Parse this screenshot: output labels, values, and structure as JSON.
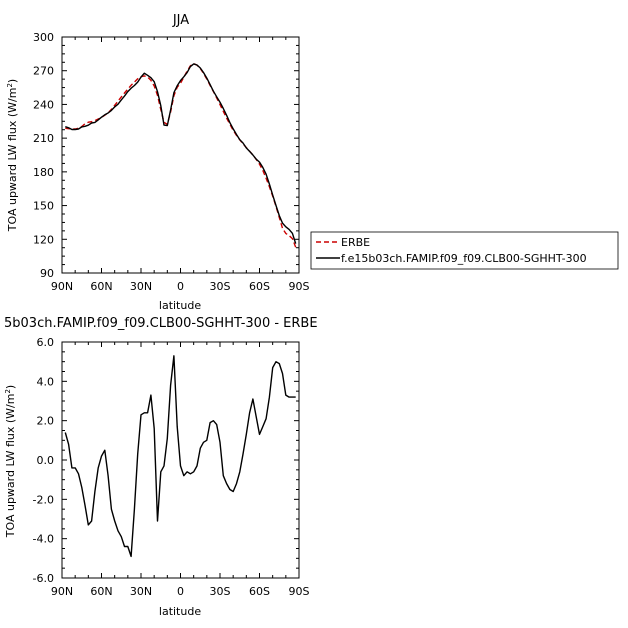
{
  "chart_data": [
    {
      "type": "line",
      "title": "JJA",
      "xlabel": "latitude",
      "ylabel": "TOA upward LW flux (W/m",
      "ylabel_sup": "2",
      "ylabel_close": ")",
      "xlim": [
        90,
        -90
      ],
      "ylim": [
        90,
        300
      ],
      "x_ticks": [
        90,
        60,
        30,
        0,
        -30,
        -60,
        -90
      ],
      "x_tick_labels": [
        "90N",
        "60N",
        "30N",
        "0",
        "30S",
        "60S",
        "90S"
      ],
      "y_ticks": [
        90,
        120,
        150,
        180,
        210,
        240,
        270,
        300
      ],
      "y_tick_labels": [
        "90",
        "120",
        "150",
        "180",
        "210",
        "240",
        "270",
        "300"
      ],
      "legend_position": "right",
      "series": [
        {
          "name": "ERBE",
          "color": "#cc0000",
          "dashed": true,
          "x": [
            87.5,
            85,
            82.5,
            80,
            77.5,
            75,
            72.5,
            70,
            67.5,
            65,
            62.5,
            60,
            57.5,
            55,
            52.5,
            50,
            47.5,
            45,
            42.5,
            40,
            37.5,
            35,
            32.5,
            30,
            27.5,
            25,
            22.5,
            20,
            17.5,
            15,
            12.5,
            10,
            7.5,
            5,
            2.5,
            0,
            -2.5,
            -5,
            -7.5,
            -10,
            -12.5,
            -15,
            -17.5,
            -20,
            -22.5,
            -25,
            -27.5,
            -30,
            -32.5,
            -35,
            -37.5,
            -40,
            -42.5,
            -45,
            -47.5,
            -50,
            -52.5,
            -55,
            -57.5,
            -60,
            -62.5,
            -65,
            -67.5,
            -70,
            -72.5,
            -75,
            -77.5,
            -80,
            -82.5,
            -85,
            -87.5
          ],
          "values": [
            218.8,
            218.4,
            218.1,
            218.1,
            218.8,
            220.4,
            222.8,
            224.2,
            224.6,
            225.6,
            227.0,
            228.4,
            230.4,
            232.4,
            235.6,
            239.2,
            243.0,
            246.7,
            250.2,
            253.6,
            257.0,
            259.9,
            262.8,
            264.7,
            265.4,
            264.4,
            261.5,
            256.5,
            248.0,
            235.5,
            224.1,
            222.2,
            233.3,
            247.8,
            255.3,
            258.8,
            264.2,
            269.6,
            274.4,
            276.3,
            275.0,
            272.0,
            267.6,
            262.6,
            256.9,
            251.5,
            245.8,
            239.9,
            233.9,
            227.8,
            222.3,
            217.0,
            212.4,
            208.5,
            205.0,
            201.6,
            198.4,
            195.0,
            191.2,
            186.8,
            181.3,
            174.4,
            166.7,
            158.4,
            149.3,
            139.4,
            129.8,
            125.2,
            123.3,
            120.6,
            113.0
          ]
        },
        {
          "name": "f.e15b03ch.FAMIP.f09_f09.CLB00-SGHHT-300",
          "color": "#000000",
          "dashed": false,
          "x": [
            87.5,
            85,
            82.5,
            80,
            77.5,
            75,
            72.5,
            70,
            67.5,
            65,
            62.5,
            60,
            57.5,
            55,
            52.5,
            50,
            47.5,
            45,
            42.5,
            40,
            37.5,
            35,
            32.5,
            30,
            27.5,
            25,
            22.5,
            20,
            17.5,
            15,
            12.5,
            10,
            7.5,
            5,
            2.5,
            0,
            -2.5,
            -5,
            -7.5,
            -10,
            -12.5,
            -15,
            -17.5,
            -20,
            -22.5,
            -25,
            -27.5,
            -30,
            -32.5,
            -35,
            -37.5,
            -40,
            -42.5,
            -45,
            -47.5,
            -50,
            -52.5,
            -55,
            -57.5,
            -60,
            -62.5,
            -65,
            -67.5,
            -70,
            -72.5,
            -75,
            -77.5,
            -80,
            -82.5,
            -85,
            -87.5
          ],
          "values": [
            220.2,
            219.2,
            217.7,
            217.7,
            218.1,
            220.0,
            220.5,
            221.5,
            223.5,
            224.0,
            226.2,
            228.6,
            230.8,
            232.4,
            234.7,
            237.8,
            240.2,
            244.0,
            247.4,
            251.4,
            254.4,
            256.8,
            259.9,
            264.3,
            267.8,
            265.9,
            263.8,
            260.2,
            251.3,
            238.9,
            221.6,
            221.2,
            235.0,
            250.4,
            256.6,
            261.2,
            264.6,
            268.3,
            273.7,
            276.1,
            275.1,
            272.4,
            268.4,
            263.4,
            257.6,
            251.8,
            246.8,
            242.0,
            236.4,
            230.3,
            223.7,
            218.2,
            213.2,
            208.6,
            205.7,
            201.3,
            198.2,
            195.0,
            191.3,
            188.7,
            184.0,
            177.9,
            169.1,
            159.3,
            150.1,
            141.1,
            134.4,
            131.1,
            128.8,
            125.3,
            116.2
          ]
        }
      ]
    },
    {
      "type": "line",
      "title": "5b03ch.FAMIP.f09_f09.CLB00-SGHHT-300 - ERBE",
      "xlabel": "latitude",
      "ylabel": "TOA upward LW flux (W/m",
      "ylabel_sup": "2",
      "ylabel_close": ")",
      "xlim": [
        90,
        -90
      ],
      "ylim": [
        -6,
        6
      ],
      "x_ticks": [
        90,
        60,
        30,
        0,
        -30,
        -60,
        -90
      ],
      "x_tick_labels": [
        "90N",
        "60N",
        "30N",
        "0",
        "30S",
        "60S",
        "90S"
      ],
      "y_ticks": [
        -6,
        -4,
        -2,
        0,
        2,
        4,
        6
      ],
      "y_tick_labels": [
        "-6.0",
        "-4.0",
        "-2.0",
        "0.0",
        "2.0",
        "4.0",
        "6.0"
      ],
      "series": [
        {
          "name": "",
          "color": "#000000",
          "dashed": false,
          "x": [
            87.5,
            85,
            82.5,
            80,
            77.5,
            75,
            72.5,
            70,
            67.5,
            65,
            62.5,
            60,
            57.5,
            55,
            52.5,
            50,
            47.5,
            45,
            42.5,
            40,
            37.5,
            35,
            32.5,
            30,
            27.5,
            25,
            22.5,
            20,
            17.5,
            15,
            12.5,
            10,
            7.5,
            5,
            2.5,
            0,
            -2.5,
            -5,
            -7.5,
            -10,
            -12.5,
            -15,
            -17.5,
            -20,
            -22.5,
            -25,
            -27.5,
            -30,
            -32.5,
            -35,
            -37.5,
            -40,
            -42.5,
            -45,
            -47.5,
            -50,
            -52.5,
            -55,
            -57.5,
            -60,
            -62.5,
            -65,
            -67.5,
            -70,
            -72.5,
            -75,
            -77.5,
            -80,
            -82.5,
            -85,
            -87.5
          ],
          "values": [
            1.4,
            0.8,
            -0.4,
            -0.4,
            -0.7,
            -1.4,
            -2.3,
            -3.3,
            -3.1,
            -1.6,
            -0.4,
            0.2,
            0.5,
            -0.8,
            -2.5,
            -3.1,
            -3.6,
            -3.9,
            -4.4,
            -4.4,
            -4.9,
            -2.5,
            0.3,
            2.3,
            2.4,
            2.4,
            3.3,
            1.6,
            -3.1,
            -0.6,
            -0.3,
            1.1,
            3.8,
            5.3,
            1.7,
            -0.3,
            -0.8,
            -0.6,
            -0.7,
            -0.6,
            -0.3,
            0.6,
            0.9,
            1.0,
            1.9,
            2.0,
            1.8,
            0.9,
            -0.8,
            -1.2,
            -1.5,
            -1.6,
            -1.2,
            -0.6,
            0.3,
            1.3,
            2.4,
            3.1,
            2.2,
            1.3,
            1.7,
            2.1,
            3.2,
            4.7,
            5.0,
            4.9,
            4.4,
            3.3,
            3.2,
            3.2,
            3.2
          ]
        }
      ]
    }
  ]
}
